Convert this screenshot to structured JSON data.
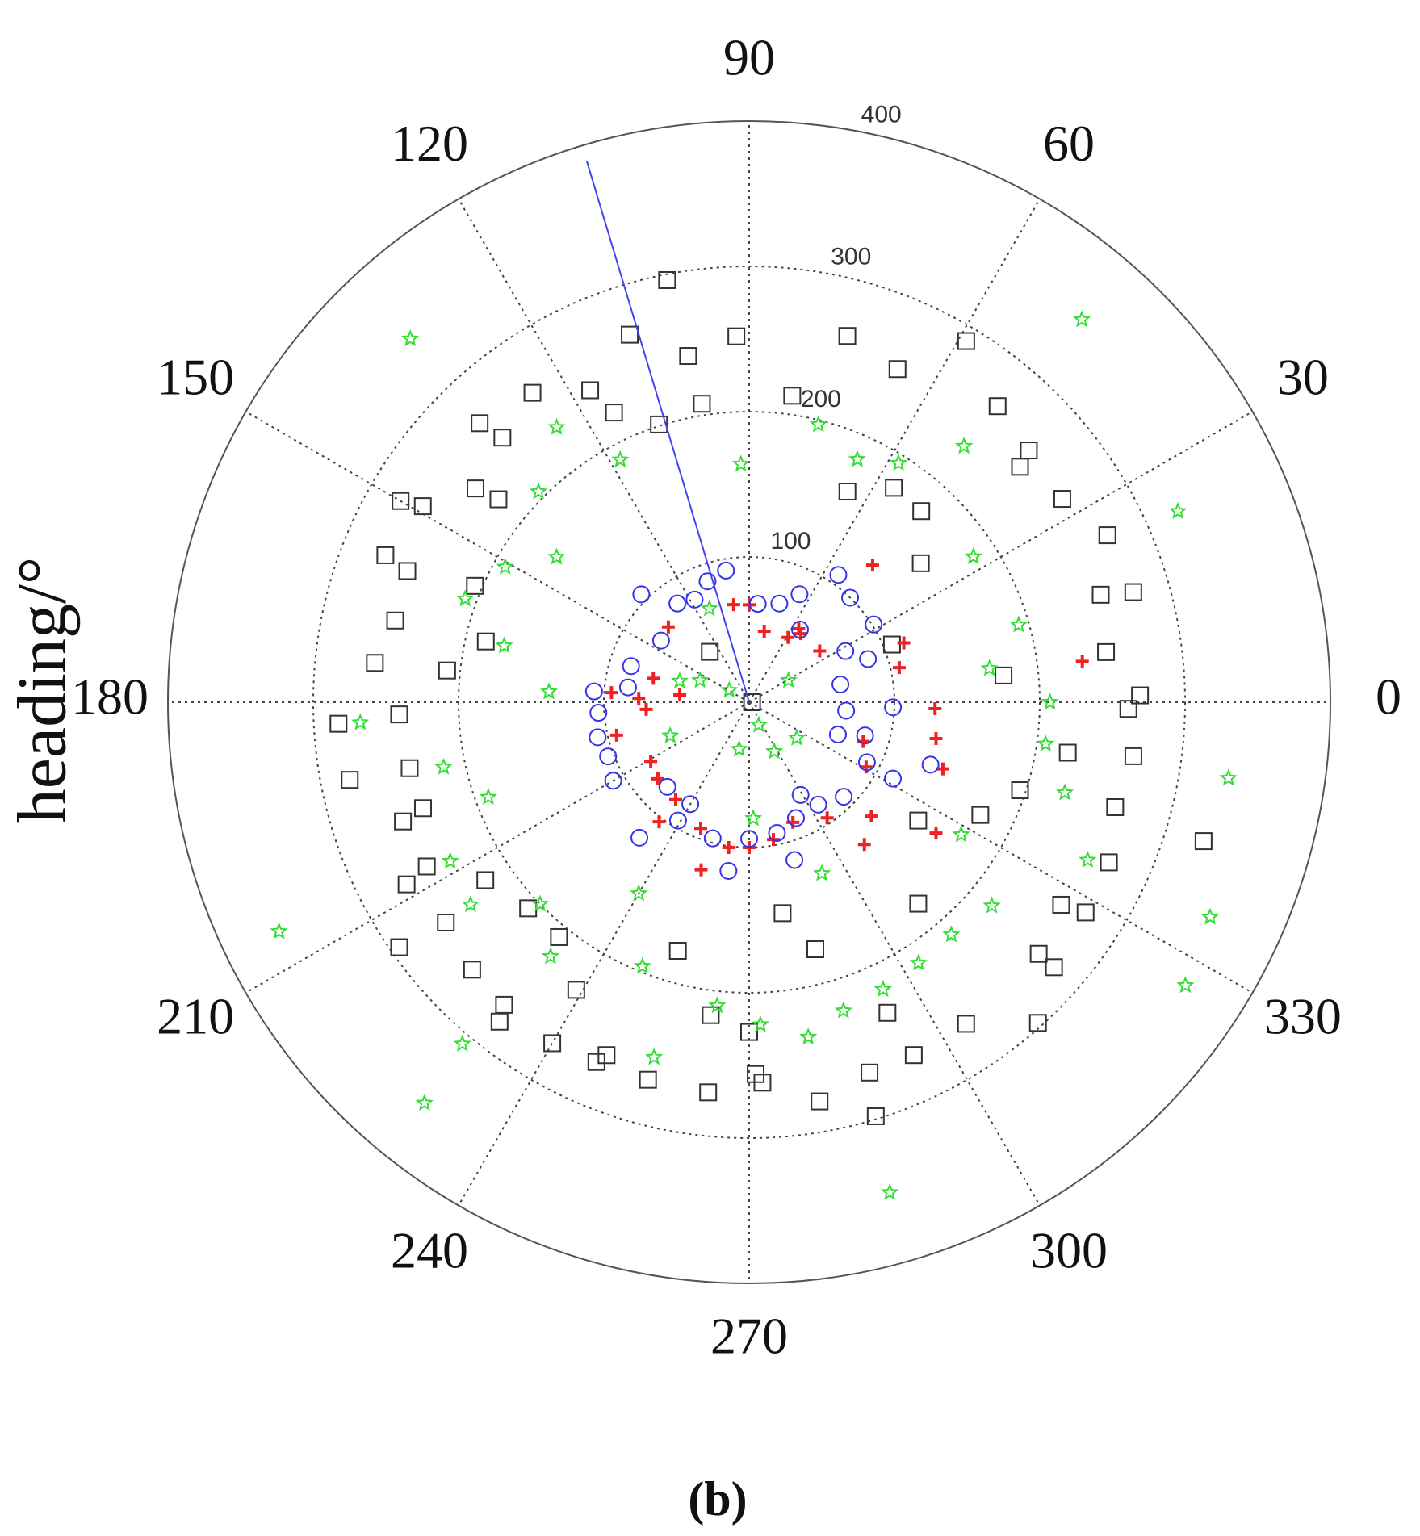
{
  "chart_data": {
    "type": "polar",
    "ylabel": "heading/°",
    "caption": "(b)",
    "rlim": [
      0,
      400
    ],
    "rticks": [
      100,
      200,
      300,
      400
    ],
    "thetaticks": [
      0,
      30,
      60,
      90,
      120,
      150,
      180,
      210,
      240,
      270,
      300,
      330
    ],
    "grid": true,
    "series": [
      {
        "marker": "square",
        "color": "#333333",
        "theta": [
          101,
          108,
          92,
          75,
          100,
          66,
          59,
          125,
          117,
          115,
          99,
          82,
          108,
          134,
          133,
          50,
          42,
          41,
          142,
          141,
          65,
          56,
          33,
          150,
          149,
          48,
          25,
          158,
          159,
          39,
          157,
          17,
          16,
          167,
          167,
          128,
          22,
          8,
          174,
          174,
          6,
          0,
          1,
          359,
          183,
          182,
          351,
          352,
          191,
          191,
          342,
          198,
          199,
          334,
          325,
          344,
          343,
          336,
          207,
          208,
          214,
          223,
          216,
          231,
          310,
          327,
          328,
          279,
          254,
          285,
          319,
          319,
          215,
          224,
          239,
          231,
          232,
          263,
          294,
          304,
          312,
          270,
          240,
          248,
          247,
          295,
          271,
          288,
          255,
          272,
          264,
          280,
          287
        ],
        "r": [
          296,
          266,
          252,
          261,
          242,
          251,
          290,
          260,
          241,
          220,
          208,
          213,
          201,
          267,
          249,
          266,
          259,
          247,
          239,
          222,
          160,
          178,
          257,
          277,
          262,
          177,
          272,
          270,
          252,
          152,
          205,
          253,
          275,
          250,
          186,
          44,
          106,
          248,
          259,
          209,
          176,
          2,
          269,
          261,
          283,
          241,
          222,
          267,
          238,
          280,
          196,
          236,
          252,
          177,
          142,
          262,
          327,
          271,
          249,
          267,
          219,
          208,
          258,
          208,
          181,
          256,
          273,
          147,
          178,
          176,
          264,
          278,
          294,
          265,
          231,
          268,
          279,
          217,
          234,
          267,
          297,
          227,
          271,
          262,
          269,
          268,
          256,
          268,
          269,
          262,
          270,
          279,
          298
        ]
      },
      {
        "marker": "star",
        "color": "#33dd33",
        "theta": [
          133,
          49,
          125,
          118,
          92,
          76,
          66,
          58,
          50,
          135,
          143,
          151,
          24,
          33,
          160,
          167,
          113,
          16,
          8,
          177,
          163,
          0,
          183,
          192,
          352,
          351,
          200,
          344,
          203,
          297,
          328,
          335,
          206,
          208,
          216,
          224,
          240,
          293,
          320,
          335,
          232,
          248,
          303,
          311,
          327,
          230,
          231,
          255,
          264,
          272,
          280,
          287,
          295,
          286,
          272,
          323,
          149,
          293,
          258,
          156,
          29
        ],
        "r": [
          342,
          349,
          231,
          189,
          164,
          197,
          183,
          194,
          230,
          205,
          166,
          192,
          323,
          184,
          208,
          173,
          70,
          193,
          167,
          138,
          50,
          207,
          268,
          215,
          206,
          334,
          191,
          226,
          59,
          38,
          172,
          257,
          360,
          233,
          237,
          200,
          152,
          128,
          218,
          350,
          222,
          196,
          214,
          212,
          358,
          307,
          355,
          253,
          210,
          222,
          234,
          222,
          218,
          351,
          80,
          41,
          16,
          17,
          33,
          37,
          31
        ]
      },
      {
        "marker": "plus",
        "color": "#ee2222",
        "theta": [
          48,
          99,
          90,
          78,
          59,
          53,
          36,
          21,
          13,
          7,
          137,
          166,
          176,
          178,
          184,
          174,
          194,
          211,
          220,
          233,
          233,
          249,
          254,
          262,
          270,
          280,
          290,
          304,
          309,
          317,
          331,
          341,
          358,
          349,
          341,
          325,
          56
        ],
        "r": [
          127,
          68,
          67,
          50,
          52,
          59,
          60,
          114,
          106,
          231,
          76,
          68,
          95,
          76,
          71,
          48,
          94,
          79,
          82,
          84,
          103,
          93,
          120,
          101,
          100,
          96,
          88,
          96,
          126,
          115,
          92,
          83,
          128,
          131,
          141,
          157,
          61
        ]
      },
      {
        "marker": "circle",
        "color": "#3333ee",
        "theta": [
          135,
          109,
          100,
          126,
          118,
          85,
          73,
          65,
          55,
          46,
          32,
          28,
          20,
          55,
          145,
          163,
          173,
          176,
          184,
          193,
          201,
          210,
          11,
          355,
          358,
          340,
          344,
          333,
          332,
          341,
          315,
          304,
          299,
          292,
          286,
          282,
          270,
          255,
          263,
          239,
          226,
          231,
          240
        ],
        "r": [
          105,
          88,
          92,
          84,
          80,
          68,
          71,
          82,
          107,
          100,
          101,
          75,
          87,
          61,
          74,
          85,
          84,
          107,
          104,
          107,
          104,
          108,
          64,
          67,
          99,
          65,
          83,
          91,
          112,
          132,
          92,
          85,
          73,
          86,
          113,
          92,
          94,
          97,
          117,
          95,
          81,
          120,
          81
        ]
      },
      {
        "marker": "line",
        "color": "#4444ee",
        "theta": [
          106.7,
          106.7
        ],
        "r": [
          0,
          389
        ]
      }
    ]
  }
}
